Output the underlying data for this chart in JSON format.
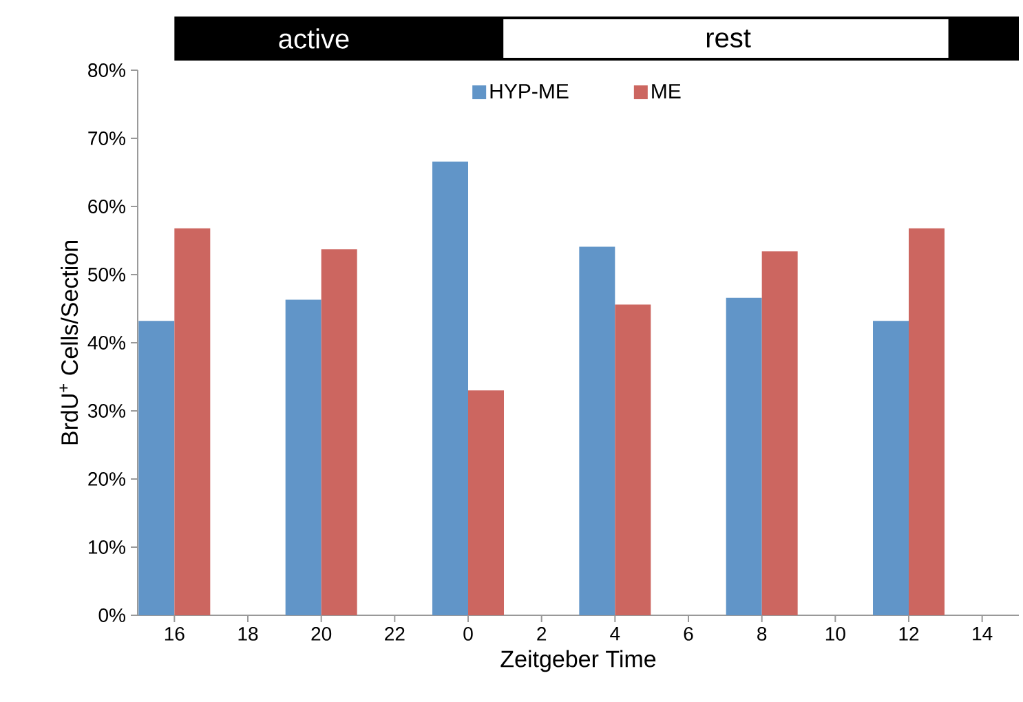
{
  "chart_data": {
    "type": "bar",
    "xlabel": "Zeitgeber Time",
    "ylabel": "BrdU$^{+}$ Cells/Section",
    "categories": [
      "16",
      "18",
      "20",
      "22",
      "0",
      "2",
      "4",
      "6",
      "8",
      "10",
      "12",
      "14"
    ],
    "series": [
      {
        "name": "HYP-ME",
        "color": "#6195c8",
        "values": [
          43.2,
          null,
          46.3,
          null,
          66.6,
          null,
          54.1,
          null,
          46.6,
          null,
          43.2,
          null
        ]
      },
      {
        "name": "ME",
        "color": "#cc6660",
        "values": [
          56.8,
          null,
          53.7,
          null,
          33.0,
          null,
          45.6,
          null,
          53.4,
          null,
          56.8,
          null
        ]
      }
    ],
    "ylim": [
      0,
      80
    ],
    "yticks": [
      {
        "value": 0,
        "label": "0%"
      },
      {
        "value": 10,
        "label": "10%"
      },
      {
        "value": 20,
        "label": "20%"
      },
      {
        "value": 30,
        "label": "30%"
      },
      {
        "value": 40,
        "label": "40%"
      },
      {
        "value": 50,
        "label": "50%"
      },
      {
        "value": 60,
        "label": "60%"
      },
      {
        "value": 70,
        "label": "70%"
      },
      {
        "value": 80,
        "label": "80%"
      }
    ],
    "annotations": [
      "active",
      "rest"
    ],
    "legend": "top"
  }
}
